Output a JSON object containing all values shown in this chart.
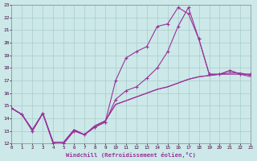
{
  "background_color": "#cce8e8",
  "grid_color": "#aacccc",
  "line_color": "#993399",
  "xlabel": "Windchill (Refroidissement éolien,°C)",
  "ylim": [
    12,
    23
  ],
  "xlim": [
    0,
    23
  ],
  "yticks": [
    12,
    13,
    14,
    15,
    16,
    17,
    18,
    19,
    20,
    21,
    22,
    23
  ],
  "xticks": [
    0,
    1,
    2,
    3,
    4,
    5,
    6,
    7,
    8,
    9,
    10,
    11,
    12,
    13,
    14,
    15,
    16,
    17,
    18,
    19,
    20,
    21,
    22,
    23
  ],
  "line_smooth1_x": [
    0,
    1,
    2,
    3,
    4,
    5,
    6,
    7,
    8,
    9,
    10,
    11,
    12,
    13,
    14,
    15,
    16,
    17,
    18,
    19,
    20,
    21,
    22,
    23
  ],
  "line_smooth1_y": [
    14.8,
    14.3,
    13.1,
    14.4,
    12.1,
    12.1,
    13.1,
    12.7,
    13.4,
    13.8,
    15.1,
    15.4,
    15.7,
    16.0,
    16.3,
    16.5,
    16.8,
    17.1,
    17.3,
    17.4,
    17.5,
    17.5,
    17.5,
    17.3
  ],
  "line_smooth2_x": [
    0,
    1,
    2,
    3,
    4,
    5,
    6,
    7,
    8,
    9,
    10,
    11,
    12,
    13,
    14,
    15,
    16,
    17,
    18,
    19,
    20,
    21,
    22,
    23
  ],
  "line_smooth2_y": [
    14.8,
    14.3,
    13.1,
    14.4,
    12.1,
    12.1,
    13.1,
    12.7,
    13.4,
    13.8,
    15.1,
    15.4,
    15.7,
    16.0,
    16.3,
    16.5,
    16.8,
    17.1,
    17.3,
    17.4,
    17.5,
    17.6,
    17.6,
    17.4
  ],
  "line_marker1_x": [
    0,
    1,
    2,
    3,
    4,
    5,
    6,
    7,
    8,
    9,
    10,
    11,
    12,
    13,
    14,
    15,
    16,
    17,
    18,
    19,
    20,
    21,
    22,
    23
  ],
  "line_marker1_y": [
    14.8,
    14.3,
    13.0,
    14.4,
    12.0,
    12.0,
    13.0,
    12.7,
    13.3,
    13.7,
    17.0,
    18.8,
    19.3,
    19.7,
    21.3,
    21.5,
    22.8,
    22.3,
    20.3,
    17.5,
    17.5,
    17.8,
    17.5,
    17.5
  ],
  "line_marker2_x": [
    0,
    1,
    2,
    3,
    4,
    5,
    6,
    7,
    8,
    9,
    10,
    11,
    12,
    13,
    14,
    15,
    16,
    17,
    18,
    19,
    20,
    21,
    22,
    23
  ],
  "line_marker2_y": [
    14.8,
    14.3,
    13.0,
    14.4,
    12.0,
    12.0,
    13.0,
    12.7,
    13.3,
    13.7,
    15.5,
    16.2,
    16.5,
    17.2,
    18.0,
    19.3,
    21.3,
    22.8,
    20.3,
    17.5,
    17.5,
    17.8,
    17.5,
    17.5
  ]
}
